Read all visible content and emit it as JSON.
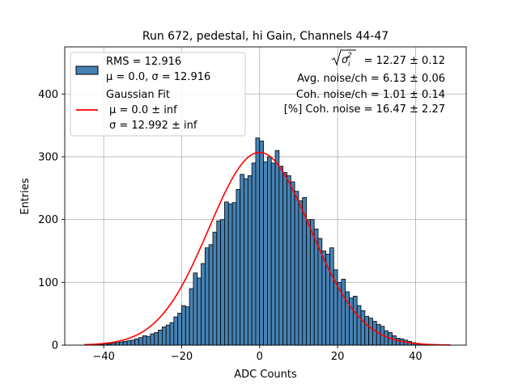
{
  "chart_data": {
    "type": "bar",
    "title": "Run 672, pedestal, hi Gain, Channels 44-47",
    "xlabel": "ADC Counts",
    "ylabel": "Entries",
    "xlim": [
      -50,
      53
    ],
    "ylim": [
      0,
      475
    ],
    "grid": true,
    "x_ticks": [
      -40,
      -20,
      0,
      20,
      40
    ],
    "x_tick_labels": [
      "−40",
      "−20",
      "0",
      "20",
      "40"
    ],
    "y_ticks": [
      0,
      100,
      200,
      300,
      400
    ],
    "y_tick_labels": [
      "0",
      "100",
      "200",
      "300",
      "400"
    ],
    "bar_color": "#4682b4",
    "bar_edge_color": "#000000",
    "fit_color": "#ff0000",
    "histogram": {
      "name": "RMS = 12.916",
      "bins": [
        [
          -45,
          0
        ],
        [
          -44,
          0
        ],
        [
          -43,
          0
        ],
        [
          -42,
          1
        ],
        [
          -41,
          1
        ],
        [
          -40,
          2
        ],
        [
          -39,
          2
        ],
        [
          -38,
          3
        ],
        [
          -37,
          4
        ],
        [
          -36,
          5
        ],
        [
          -35,
          6
        ],
        [
          -34,
          7
        ],
        [
          -33,
          8
        ],
        [
          -32,
          10
        ],
        [
          -31,
          12
        ],
        [
          -30,
          15
        ],
        [
          -29,
          14
        ],
        [
          -28,
          18
        ],
        [
          -27,
          20
        ],
        [
          -26,
          24
        ],
        [
          -25,
          29
        ],
        [
          -24,
          32
        ],
        [
          -23,
          36
        ],
        [
          -22,
          45
        ],
        [
          -21,
          51
        ],
        [
          -20,
          63
        ],
        [
          -19,
          61
        ],
        [
          -18,
          90
        ],
        [
          -17,
          115
        ],
        [
          -16,
          107
        ],
        [
          -15,
          130
        ],
        [
          -14,
          155
        ],
        [
          -13,
          160
        ],
        [
          -12,
          180
        ],
        [
          -11,
          198
        ],
        [
          -10,
          200
        ],
        [
          -9,
          228
        ],
        [
          -8,
          225
        ],
        [
          -7,
          227
        ],
        [
          -6,
          248
        ],
        [
          -5,
          272
        ],
        [
          -4,
          265
        ],
        [
          -3,
          270
        ],
        [
          -2,
          290
        ],
        [
          -1,
          330
        ],
        [
          0,
          325
        ],
        [
          1,
          292
        ],
        [
          2,
          300
        ],
        [
          3,
          290
        ],
        [
          4,
          310
        ],
        [
          5,
          285
        ],
        [
          6,
          275
        ],
        [
          7,
          270
        ],
        [
          8,
          260
        ],
        [
          9,
          245
        ],
        [
          10,
          230
        ],
        [
          11,
          235
        ],
        [
          12,
          200
        ],
        [
          13,
          200
        ],
        [
          14,
          185
        ],
        [
          15,
          170
        ],
        [
          16,
          150
        ],
        [
          17,
          145
        ],
        [
          18,
          155
        ],
        [
          19,
          120
        ],
        [
          20,
          100
        ],
        [
          21,
          105
        ],
        [
          22,
          85
        ],
        [
          23,
          75
        ],
        [
          24,
          78
        ],
        [
          25,
          63
        ],
        [
          26,
          55
        ],
        [
          27,
          46
        ],
        [
          28,
          43
        ],
        [
          29,
          38
        ],
        [
          30,
          33
        ],
        [
          31,
          30
        ],
        [
          32,
          23
        ],
        [
          33,
          20
        ],
        [
          34,
          15
        ],
        [
          35,
          11
        ],
        [
          36,
          10
        ],
        [
          37,
          8
        ],
        [
          38,
          6
        ],
        [
          39,
          4
        ],
        [
          40,
          3
        ],
        [
          41,
          2
        ],
        [
          42,
          1
        ],
        [
          43,
          1
        ],
        [
          44,
          1
        ],
        [
          45,
          0
        ],
        [
          46,
          0
        ],
        [
          47,
          0
        ],
        [
          48,
          0
        ]
      ],
      "bin_width": 1
    },
    "fit": {
      "name": "Gaussian Fit",
      "mu": 0.0,
      "sigma": 12.992,
      "amplitude": 307,
      "x_range": [
        -45,
        49
      ]
    },
    "legend": {
      "position": "upper left",
      "entries": [
        {
          "line1": "RMS = 12.916",
          "line2": "μ = 0.0, σ = 12.916"
        },
        {
          "line1": "Gaussian Fit",
          "line2": "μ = 0.0 ± inf",
          "line3": "σ = 12.992 ± inf"
        }
      ]
    },
    "annotations": {
      "sigma_value": "= 12.27 ± 0.12",
      "avg_noise": "Avg. noise/ch = 6.13 ± 0.06",
      "coh_noise": "Coh. noise/ch = 1.01 ± 0.14",
      "pct_coh": "[%] Coh. noise = 16.47 ± 2.27"
    }
  }
}
